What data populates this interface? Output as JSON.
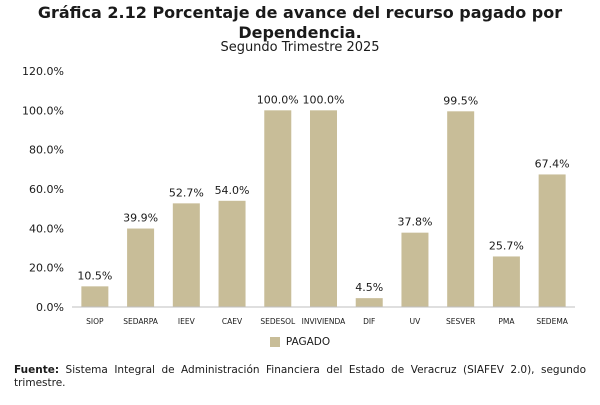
{
  "title": "Gráfica 2.12 Porcentaje de avance del recurso pagado por Dependencia.",
  "subtitle": "Segundo Trimestre 2025",
  "colors": {
    "bar": "#c8bd98"
  },
  "chart_data": {
    "type": "bar",
    "categories": [
      "SIOP",
      "SEDARPA",
      "IEEV",
      "CAEV",
      "SEDESOL",
      "INVIVIENDA",
      "DIF",
      "UV",
      "SESVER",
      "PMA",
      "SEDEMA"
    ],
    "series": [
      {
        "name": "PAGADO",
        "values": [
          10.5,
          39.9,
          52.7,
          54.0,
          100.0,
          100.0,
          4.5,
          37.8,
          99.5,
          25.7,
          67.4
        ],
        "labels": [
          "10.5%",
          "39.9%",
          "52.7%",
          "54.0%",
          "100.0%",
          "100.0%",
          "4.5%",
          "37.8%",
          "99.5%",
          "25.7%",
          "67.4%"
        ]
      }
    ],
    "ylim": [
      0,
      120
    ],
    "yticks": [
      "0.0%",
      "20.0%",
      "40.0%",
      "60.0%",
      "80.0%",
      "100.0%",
      "120.0%"
    ],
    "grid": false,
    "legend_position": "bottom"
  },
  "footnote": {
    "label": "Fuente:",
    "text": " Sistema Integral de Administración Financiera del Estado de Veracruz (SIAFEV 2.0), segundo trimestre."
  }
}
